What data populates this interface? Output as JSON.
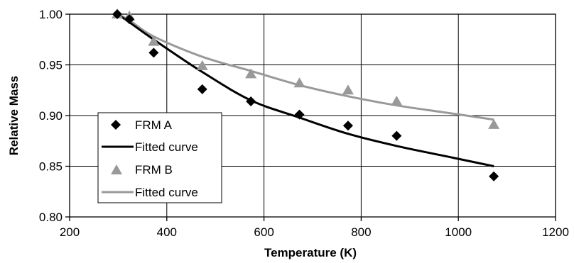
{
  "chart_data": {
    "type": "scatter",
    "title": "",
    "xlabel": "Temperature (K)",
    "ylabel": "Relative Mass",
    "xlim": [
      200,
      1200
    ],
    "ylim": [
      0.8,
      1.0
    ],
    "x_ticks": [
      200,
      400,
      600,
      800,
      1000,
      1200
    ],
    "y_ticks": [
      0.8,
      0.85,
      0.9,
      0.95,
      1.0
    ],
    "x_tick_labels": [
      "200",
      "400",
      "600",
      "800",
      "1000",
      "1200"
    ],
    "y_tick_labels": [
      "0.80",
      "0.85",
      "0.90",
      "0.95",
      "1.00"
    ],
    "grid": true,
    "legend_position": "lower-left",
    "series": [
      {
        "name": "FRM A",
        "kind": "scatter",
        "marker": "diamond",
        "color": "#000000",
        "x": [
          298,
          323,
          373,
          473,
          573,
          673,
          773,
          873,
          1073
        ],
        "y": [
          1.0,
          0.995,
          0.962,
          0.926,
          0.914,
          0.901,
          0.89,
          0.88,
          0.84
        ]
      },
      {
        "name": "Fitted curve",
        "kind": "line",
        "color": "#000000",
        "x": [
          298,
          323,
          373,
          473,
          573,
          673,
          773,
          873,
          973,
          1073
        ],
        "y": [
          1.0,
          0.992,
          0.975,
          0.943,
          0.915,
          0.898,
          0.882,
          0.87,
          0.86,
          0.85
        ]
      },
      {
        "name": "FRM B",
        "kind": "scatter",
        "marker": "triangle",
        "color": "#999999",
        "x": [
          298,
          323,
          373,
          473,
          573,
          673,
          773,
          873,
          1073
        ],
        "y": [
          1.0,
          0.998,
          0.973,
          0.949,
          0.941,
          0.932,
          0.925,
          0.914,
          0.891
        ]
      },
      {
        "name": "Fitted curve",
        "kind": "line",
        "color": "#999999",
        "x": [
          298,
          323,
          373,
          473,
          573,
          673,
          773,
          873,
          973,
          1073
        ],
        "y": [
          1.0,
          0.994,
          0.978,
          0.958,
          0.944,
          0.93,
          0.919,
          0.91,
          0.903,
          0.896
        ]
      }
    ]
  }
}
